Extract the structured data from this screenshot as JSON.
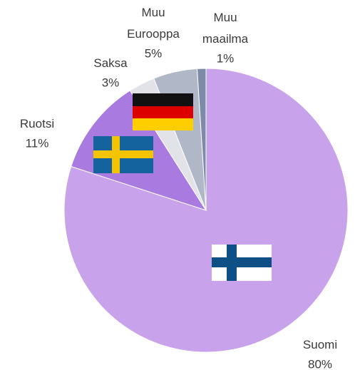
{
  "chart_data": {
    "type": "pie",
    "categories": [
      "Suomi",
      "Ruotsi",
      "Saksa",
      "Muu Eurooppa",
      "Muu maailma"
    ],
    "values": [
      80,
      11,
      3,
      5,
      1
    ],
    "value_labels": [
      "80%",
      "11%",
      "3%",
      "5%",
      "1%"
    ],
    "colors": [
      "#c8a2ea",
      "#a97ae0",
      "#e1e3e8",
      "#b0b7c6",
      "#7d8ba8"
    ]
  }
}
